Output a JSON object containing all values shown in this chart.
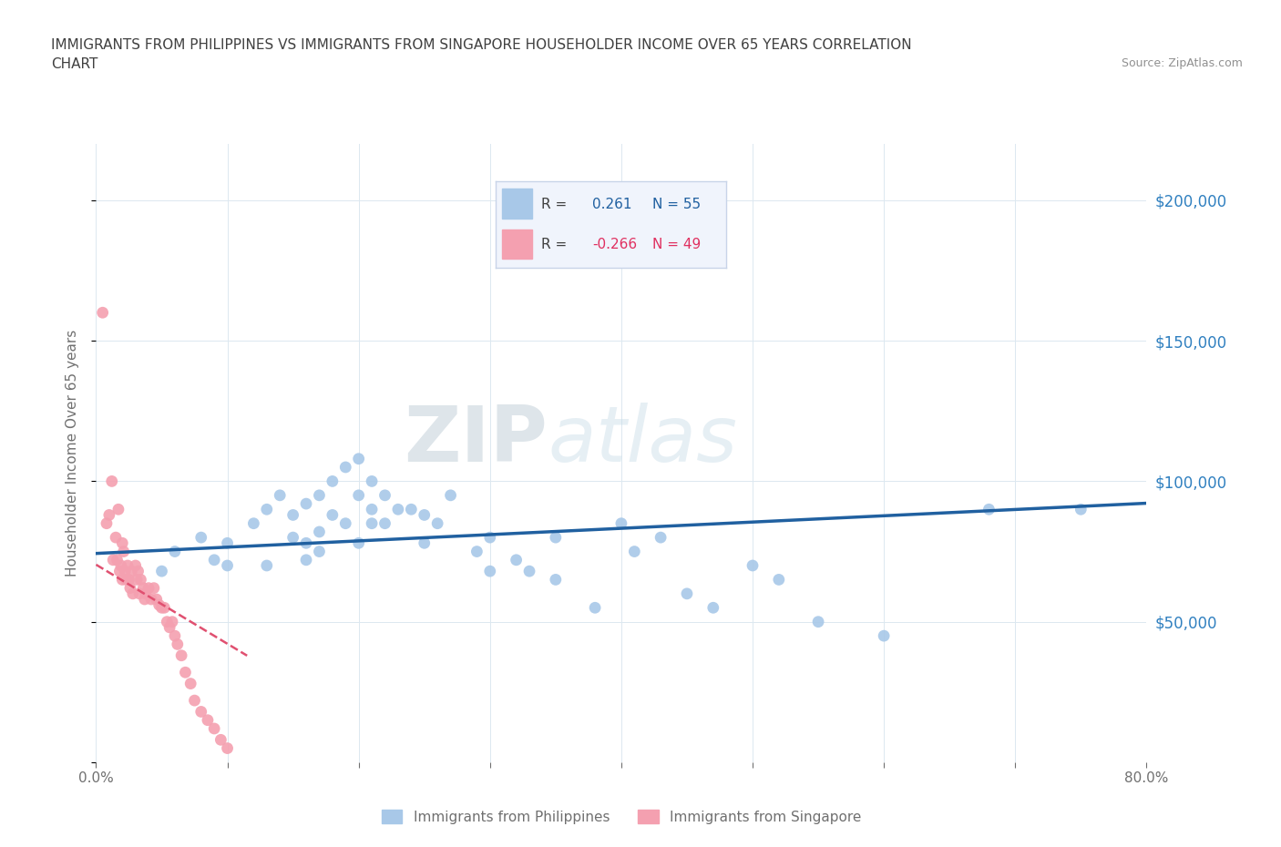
{
  "title_line1": "IMMIGRANTS FROM PHILIPPINES VS IMMIGRANTS FROM SINGAPORE HOUSEHOLDER INCOME OVER 65 YEARS CORRELATION",
  "title_line2": "CHART",
  "source": "Source: ZipAtlas.com",
  "ylabel": "Householder Income Over 65 years",
  "xlim": [
    0.0,
    0.8
  ],
  "ylim": [
    0,
    220000
  ],
  "yticks": [
    0,
    50000,
    100000,
    150000,
    200000
  ],
  "ytick_labels": [
    "",
    "$50,000",
    "$100,000",
    "$150,000",
    "$200,000"
  ],
  "xticks": [
    0.0,
    0.1,
    0.2,
    0.3,
    0.4,
    0.5,
    0.6,
    0.7,
    0.8
  ],
  "xtick_labels": [
    "0.0%",
    "",
    "",
    "",
    "",
    "",
    "",
    "",
    "80.0%"
  ],
  "background_color": "#ffffff",
  "watermark_ZIP": "ZIP",
  "watermark_atlas": "atlas",
  "philippines_color": "#a8c8e8",
  "singapore_color": "#f4a0b0",
  "philippines_line_color": "#2060a0",
  "singapore_line_color": "#e05070",
  "philippines_R": "0.261",
  "philippines_N": "55",
  "singapore_R": "-0.266",
  "singapore_N": "49",
  "phil_scatter_x": [
    0.05,
    0.06,
    0.08,
    0.09,
    0.1,
    0.1,
    0.12,
    0.13,
    0.13,
    0.14,
    0.15,
    0.15,
    0.16,
    0.16,
    0.16,
    0.17,
    0.17,
    0.17,
    0.18,
    0.18,
    0.19,
    0.19,
    0.2,
    0.2,
    0.2,
    0.21,
    0.21,
    0.21,
    0.22,
    0.22,
    0.23,
    0.24,
    0.25,
    0.25,
    0.26,
    0.27,
    0.29,
    0.3,
    0.3,
    0.32,
    0.33,
    0.35,
    0.35,
    0.38,
    0.4,
    0.41,
    0.43,
    0.45,
    0.47,
    0.5,
    0.52,
    0.55,
    0.6,
    0.68,
    0.75
  ],
  "phil_scatter_y": [
    68000,
    75000,
    80000,
    72000,
    70000,
    78000,
    85000,
    90000,
    70000,
    95000,
    88000,
    80000,
    92000,
    78000,
    72000,
    95000,
    82000,
    75000,
    100000,
    88000,
    105000,
    85000,
    108000,
    95000,
    78000,
    100000,
    90000,
    85000,
    95000,
    85000,
    90000,
    90000,
    88000,
    78000,
    85000,
    95000,
    75000,
    80000,
    68000,
    72000,
    68000,
    80000,
    65000,
    55000,
    85000,
    75000,
    80000,
    60000,
    55000,
    70000,
    65000,
    50000,
    45000,
    90000,
    90000
  ],
  "sing_scatter_x": [
    0.005,
    0.008,
    0.01,
    0.012,
    0.013,
    0.015,
    0.016,
    0.017,
    0.018,
    0.019,
    0.02,
    0.02,
    0.021,
    0.022,
    0.023,
    0.024,
    0.025,
    0.026,
    0.027,
    0.028,
    0.03,
    0.031,
    0.032,
    0.033,
    0.034,
    0.036,
    0.037,
    0.038,
    0.04,
    0.042,
    0.044,
    0.046,
    0.048,
    0.05,
    0.052,
    0.054,
    0.056,
    0.058,
    0.06,
    0.062,
    0.065,
    0.068,
    0.072,
    0.075,
    0.08,
    0.085,
    0.09,
    0.095,
    0.1
  ],
  "sing_scatter_y": [
    160000,
    85000,
    88000,
    100000,
    72000,
    80000,
    72000,
    90000,
    68000,
    70000,
    78000,
    65000,
    75000,
    68000,
    65000,
    70000,
    65000,
    62000,
    68000,
    60000,
    70000,
    65000,
    68000,
    60000,
    65000,
    62000,
    58000,
    60000,
    62000,
    58000,
    62000,
    58000,
    56000,
    55000,
    55000,
    50000,
    48000,
    50000,
    45000,
    42000,
    38000,
    32000,
    28000,
    22000,
    18000,
    15000,
    12000,
    8000,
    5000
  ],
  "grid_color": "#dce8f0",
  "title_color": "#404040",
  "axis_tick_color": "#707070",
  "right_axis_color": "#3080c0",
  "legend_bg": "#f0f4fc",
  "legend_border": "#c8d4e8"
}
